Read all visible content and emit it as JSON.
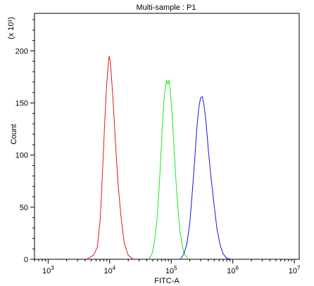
{
  "chart_data": {
    "type": "line",
    "title": "Multi-sample : P1",
    "xlabel": "FITC-A",
    "ylabel": "Count",
    "y_multiplier_label": "(x 10¹)",
    "x_scale": "log",
    "xlim": [
      600,
      12000000
    ],
    "ylim": [
      0,
      236
    ],
    "x_ticks": [
      {
        "value": 1000,
        "base": "10",
        "exp": "3"
      },
      {
        "value": 10000,
        "base": "10",
        "exp": "4"
      },
      {
        "value": 100000,
        "base": "10",
        "exp": "5"
      },
      {
        "value": 1000000,
        "base": "10",
        "exp": "6"
      },
      {
        "value": 10000000,
        "base": "10",
        "exp": "7"
      }
    ],
    "y_ticks": [
      "0",
      "50",
      "100",
      "150",
      "200"
    ],
    "grid": false,
    "legend": "none",
    "series": [
      {
        "color": "#e8141e",
        "x": [
          4200,
          5500,
          6300,
          7000,
          7600,
          8200,
          8600,
          9000,
          9400,
          9800,
          10200,
          10600,
          11100,
          11800,
          12600,
          13800,
          15300,
          17300,
          20000,
          24000
        ],
        "y": [
          0,
          4,
          12,
          38,
          80,
          125,
          150,
          170,
          185,
          195,
          190,
          178,
          160,
          135,
          105,
          70,
          40,
          15,
          4,
          0
        ]
      },
      {
        "color": "#1ee81e",
        "x": [
          42000,
          48000,
          53000,
          58000,
          63000,
          68000,
          72000,
          76000,
          80000,
          84000,
          88000,
          92000,
          97000,
          103000,
          110000,
          118000,
          128000,
          140000,
          160000,
          190000
        ],
        "y": [
          0,
          4,
          15,
          35,
          65,
          100,
          130,
          152,
          165,
          172,
          168,
          172,
          160,
          140,
          110,
          80,
          50,
          25,
          6,
          0
        ]
      },
      {
        "color": "#1414e6",
        "x": [
          140000,
          160000,
          180000,
          200000,
          220000,
          240000,
          260000,
          280000,
          300000,
          320000,
          340000,
          370000,
          400000,
          440000,
          490000,
          550000,
          620000,
          700000,
          800000,
          950000
        ],
        "y": [
          0,
          5,
          15,
          35,
          65,
          95,
          125,
          145,
          155,
          156,
          148,
          130,
          105,
          80,
          55,
          30,
          14,
          5,
          1,
          0
        ]
      }
    ]
  }
}
